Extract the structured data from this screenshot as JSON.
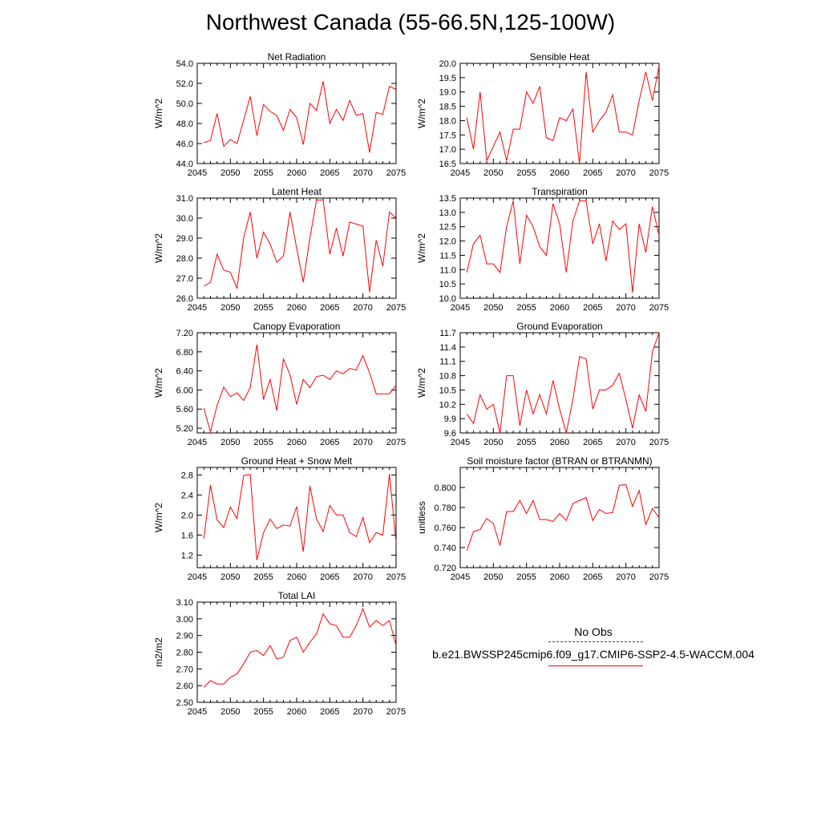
{
  "page_title": "Northwest Canada (55-66.5N,125-100W)",
  "legend": {
    "obs_label": "No Obs",
    "model_label": "b.e21.BWSSP245cmip6.f09_g17.CMIP6-SSP2-4.5-WACCM.004",
    "obs_color": "#3a3aa0",
    "model_color": "#ff0000"
  },
  "chart_data": [
    {
      "type": "line",
      "title": "Net Radiation",
      "ylabel": "W/m^2",
      "xlim": [
        2045,
        2075
      ],
      "ylim": [
        44.0,
        54.0
      ],
      "xticks": [
        "2045",
        "2050",
        "2055",
        "2060",
        "2065",
        "2070",
        "2075"
      ],
      "yticks": [
        "44.0",
        "46.0",
        "48.0",
        "50.0",
        "52.0",
        "54.0"
      ],
      "x": [
        2046,
        2047,
        2048,
        2049,
        2050,
        2051,
        2052,
        2053,
        2054,
        2055,
        2056,
        2057,
        2058,
        2059,
        2060,
        2061,
        2062,
        2063,
        2064,
        2065,
        2066,
        2067,
        2068,
        2069,
        2070,
        2071,
        2072,
        2073,
        2074,
        2075
      ],
      "series": [
        {
          "values": [
            46.1,
            46.3,
            49.0,
            45.7,
            46.4,
            46.0,
            48.3,
            50.7,
            46.8,
            49.9,
            49.2,
            48.8,
            47.3,
            49.4,
            48.6,
            45.9,
            50.0,
            49.3,
            52.2,
            48.0,
            49.4,
            48.3,
            50.3,
            48.8,
            49.0,
            45.1,
            49.1,
            48.9,
            51.7,
            51.4
          ]
        }
      ]
    },
    {
      "type": "line",
      "title": "Sensible Heat",
      "ylabel": "W/m^2",
      "xlim": [
        2045,
        2075
      ],
      "ylim": [
        16.5,
        20.0
      ],
      "xticks": [
        "2045",
        "2050",
        "2055",
        "2060",
        "2065",
        "2070",
        "2075"
      ],
      "yticks": [
        "16.5",
        "17.0",
        "17.5",
        "18.0",
        "18.5",
        "19.0",
        "19.5",
        "20.0"
      ],
      "x": [
        2046,
        2047,
        2048,
        2049,
        2050,
        2051,
        2052,
        2053,
        2054,
        2055,
        2056,
        2057,
        2058,
        2059,
        2060,
        2061,
        2062,
        2063,
        2064,
        2065,
        2066,
        2067,
        2068,
        2069,
        2070,
        2071,
        2072,
        2073,
        2074,
        2075
      ],
      "series": [
        {
          "values": [
            18.1,
            17.0,
            19.0,
            16.6,
            17.1,
            17.6,
            16.6,
            17.7,
            17.7,
            19.0,
            18.6,
            19.2,
            17.4,
            17.3,
            18.1,
            18.0,
            18.4,
            16.5,
            19.7,
            17.6,
            18.0,
            18.3,
            18.9,
            17.6,
            17.6,
            17.5,
            18.7,
            19.7,
            18.7,
            19.9
          ]
        }
      ]
    },
    {
      "type": "line",
      "title": "Latent Heat",
      "ylabel": "W/m^2",
      "xlim": [
        2045,
        2075
      ],
      "ylim": [
        26.0,
        31.0
      ],
      "xticks": [
        "2045",
        "2050",
        "2055",
        "2060",
        "2065",
        "2070",
        "2075"
      ],
      "yticks": [
        "26.0",
        "27.0",
        "28.0",
        "29.0",
        "30.0",
        "31.0"
      ],
      "x": [
        2046,
        2047,
        2048,
        2049,
        2050,
        2051,
        2052,
        2053,
        2054,
        2055,
        2056,
        2057,
        2058,
        2059,
        2060,
        2061,
        2062,
        2063,
        2064,
        2065,
        2066,
        2067,
        2068,
        2069,
        2070,
        2071,
        2072,
        2073,
        2074,
        2075
      ],
      "series": [
        {
          "values": [
            26.6,
            26.8,
            28.2,
            27.4,
            27.3,
            26.5,
            29.0,
            30.3,
            28.0,
            29.3,
            28.7,
            27.8,
            28.1,
            30.3,
            28.5,
            26.8,
            29.0,
            30.9,
            30.9,
            28.2,
            29.5,
            28.1,
            29.8,
            29.7,
            29.6,
            26.3,
            28.9,
            27.6,
            30.3,
            30.0
          ]
        }
      ]
    },
    {
      "type": "line",
      "title": "Transpiration",
      "ylabel": "W/m^2",
      "xlim": [
        2045,
        2075
      ],
      "ylim": [
        10.0,
        13.5
      ],
      "xticks": [
        "2045",
        "2050",
        "2055",
        "2060",
        "2065",
        "2070",
        "2075"
      ],
      "yticks": [
        "10.0",
        "10.5",
        "11.0",
        "11.5",
        "12.0",
        "12.5",
        "13.0",
        "13.5"
      ],
      "x": [
        2046,
        2047,
        2048,
        2049,
        2050,
        2051,
        2052,
        2053,
        2054,
        2055,
        2056,
        2057,
        2058,
        2059,
        2060,
        2061,
        2062,
        2063,
        2064,
        2065,
        2066,
        2067,
        2068,
        2069,
        2070,
        2071,
        2072,
        2073,
        2074,
        2075
      ],
      "series": [
        {
          "values": [
            10.9,
            11.9,
            12.2,
            11.2,
            11.2,
            10.9,
            12.5,
            13.4,
            11.2,
            12.9,
            12.5,
            11.8,
            11.5,
            13.3,
            12.6,
            10.9,
            12.7,
            13.4,
            13.4,
            11.9,
            12.6,
            11.3,
            12.7,
            12.4,
            12.6,
            10.2,
            12.6,
            11.6,
            13.2,
            12.2
          ]
        }
      ]
    },
    {
      "type": "line",
      "title": "Canopy Evaporation",
      "ylabel": "W/m^2",
      "xlim": [
        2045,
        2075
      ],
      "ylim": [
        5.1,
        7.2
      ],
      "xticks": [
        "2045",
        "2050",
        "2055",
        "2060",
        "2065",
        "2070",
        "2075"
      ],
      "yticks": [
        "5.20",
        "5.60",
        "6.00",
        "6.40",
        "6.80",
        "7.20"
      ],
      "x": [
        2046,
        2047,
        2048,
        2049,
        2050,
        2051,
        2052,
        2053,
        2054,
        2055,
        2056,
        2057,
        2058,
        2059,
        2060,
        2061,
        2062,
        2063,
        2064,
        2065,
        2066,
        2067,
        2068,
        2069,
        2070,
        2071,
        2072,
        2073,
        2074,
        2075
      ],
      "series": [
        {
          "values": [
            5.62,
            5.12,
            5.68,
            6.06,
            5.86,
            5.94,
            5.78,
            6.05,
            6.95,
            5.8,
            6.22,
            5.57,
            6.65,
            6.32,
            5.7,
            6.22,
            6.05,
            6.28,
            6.31,
            6.22,
            6.4,
            6.34,
            6.45,
            6.42,
            6.72,
            6.36,
            5.92,
            5.92,
            5.92,
            6.1
          ]
        }
      ]
    },
    {
      "type": "line",
      "title": "Ground Evaporation",
      "ylabel": "W/m^2",
      "xlim": [
        2045,
        2075
      ],
      "ylim": [
        9.6,
        11.7
      ],
      "xticks": [
        "2045",
        "2050",
        "2055",
        "2060",
        "2065",
        "2070",
        "2075"
      ],
      "yticks": [
        "9.6",
        "9.9",
        "10.2",
        "10.5",
        "10.8",
        "11.1",
        "11.4",
        "11.7"
      ],
      "x": [
        2046,
        2047,
        2048,
        2049,
        2050,
        2051,
        2052,
        2053,
        2054,
        2055,
        2056,
        2057,
        2058,
        2059,
        2060,
        2061,
        2062,
        2063,
        2064,
        2065,
        2066,
        2067,
        2068,
        2069,
        2070,
        2071,
        2072,
        2073,
        2074,
        2075
      ],
      "series": [
        {
          "values": [
            10.0,
            9.8,
            10.4,
            10.1,
            10.2,
            9.6,
            10.8,
            10.8,
            9.75,
            10.5,
            10.0,
            10.4,
            10.0,
            10.7,
            10.1,
            9.6,
            10.3,
            11.2,
            11.15,
            10.1,
            10.5,
            10.5,
            10.6,
            10.85,
            10.3,
            9.7,
            10.4,
            10.05,
            11.3,
            11.7
          ]
        }
      ]
    },
    {
      "type": "line",
      "title": "Ground Heat + Snow Melt",
      "ylabel": "W/m^2",
      "xlim": [
        2045,
        2075
      ],
      "ylim": [
        0.95,
        2.95
      ],
      "xticks": [
        "2045",
        "2050",
        "2055",
        "2060",
        "2065",
        "2070",
        "2075"
      ],
      "yticks": [
        "1.2",
        "1.6",
        "2.0",
        "2.4",
        "2.8"
      ],
      "x": [
        2046,
        2047,
        2048,
        2049,
        2050,
        2051,
        2052,
        2053,
        2054,
        2055,
        2056,
        2057,
        2058,
        2059,
        2060,
        2061,
        2062,
        2063,
        2064,
        2065,
        2066,
        2067,
        2068,
        2069,
        2070,
        2071,
        2072,
        2073,
        2074,
        2075
      ],
      "series": [
        {
          "values": [
            1.53,
            2.6,
            1.9,
            1.75,
            2.16,
            1.93,
            2.79,
            2.81,
            1.1,
            1.65,
            1.92,
            1.73,
            1.8,
            1.78,
            2.17,
            1.27,
            2.58,
            1.92,
            1.67,
            2.19,
            2.0,
            2.0,
            1.65,
            1.57,
            1.95,
            1.45,
            1.65,
            1.6,
            2.82,
            1.45
          ]
        }
      ]
    },
    {
      "type": "line",
      "title": "Soil moisture factor (BTRAN or BTRANMN)",
      "ylabel": "unitless",
      "xlim": [
        2045,
        2075
      ],
      "ylim": [
        0.72,
        0.82
      ],
      "xticks": [
        "2045",
        "2050",
        "2055",
        "2060",
        "2065",
        "2070",
        "2075"
      ],
      "yticks": [
        "0.720",
        "0.740",
        "0.760",
        "0.780",
        "0.800"
      ],
      "x": [
        2046,
        2047,
        2048,
        2049,
        2050,
        2051,
        2052,
        2053,
        2054,
        2055,
        2056,
        2057,
        2058,
        2059,
        2060,
        2061,
        2062,
        2063,
        2064,
        2065,
        2066,
        2067,
        2068,
        2069,
        2070,
        2071,
        2072,
        2073,
        2074,
        2075
      ],
      "series": [
        {
          "values": [
            0.737,
            0.756,
            0.758,
            0.769,
            0.764,
            0.742,
            0.776,
            0.776,
            0.787,
            0.774,
            0.787,
            0.768,
            0.768,
            0.766,
            0.774,
            0.767,
            0.784,
            0.787,
            0.79,
            0.767,
            0.778,
            0.774,
            0.775,
            0.802,
            0.803,
            0.781,
            0.797,
            0.763,
            0.779,
            0.77
          ]
        }
      ]
    },
    {
      "type": "line",
      "title": "Total LAI",
      "ylabel": "m2/m2",
      "xlim": [
        2045,
        2075
      ],
      "ylim": [
        2.5,
        3.1
      ],
      "xticks": [
        "2045",
        "2050",
        "2055",
        "2060",
        "2065",
        "2070",
        "2075"
      ],
      "yticks": [
        "2.50",
        "2.60",
        "2.70",
        "2.80",
        "2.90",
        "3.00",
        "3.10"
      ],
      "x": [
        2046,
        2047,
        2048,
        2049,
        2050,
        2051,
        2052,
        2053,
        2054,
        2055,
        2056,
        2057,
        2058,
        2059,
        2060,
        2061,
        2062,
        2063,
        2064,
        2065,
        2066,
        2067,
        2068,
        2069,
        2070,
        2071,
        2072,
        2073,
        2074,
        2075
      ],
      "series": [
        {
          "values": [
            2.59,
            2.63,
            2.61,
            2.61,
            2.65,
            2.67,
            2.73,
            2.8,
            2.81,
            2.78,
            2.84,
            2.76,
            2.77,
            2.87,
            2.89,
            2.8,
            2.86,
            2.91,
            3.03,
            2.97,
            2.96,
            2.89,
            2.89,
            2.96,
            3.06,
            2.95,
            2.99,
            2.96,
            2.99,
            2.84
          ]
        }
      ]
    }
  ]
}
